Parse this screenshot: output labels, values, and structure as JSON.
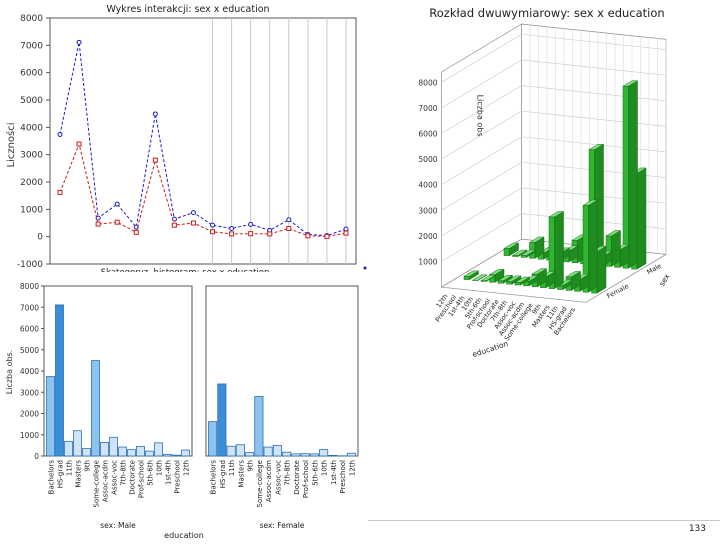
{
  "chart_data": [
    {
      "type": "line",
      "title": "Wykres interakcji: sex x education",
      "xlabel": "Skategoryz. histogram: sex x education",
      "ylabel": "Liczności",
      "ylim": [
        -1000,
        8000
      ],
      "yticks": [
        "-1000",
        "0",
        "1000",
        "2000",
        "3000",
        "4000",
        "5000",
        "6000",
        "7000",
        "8000"
      ],
      "yticks_values": [
        -1000,
        0,
        1000,
        2000,
        3000,
        4000,
        5000,
        6000,
        7000,
        8000
      ],
      "categories": [
        "Bachelors",
        "HS-grad",
        "11th",
        "Masters",
        "9th",
        "Some-college",
        "Assoc-acdm",
        "Assoc-voc",
        "7th-8th",
        "Doctorate",
        "Prof-school",
        "5th-6th",
        "10th",
        "1st-4th",
        "Preschool",
        "12th"
      ],
      "series": [
        {
          "name": "Male",
          "color": "#1c1ccc",
          "values": [
            3740,
            7110,
            680,
            1190,
            350,
            4490,
            640,
            880,
            420,
            300,
            450,
            230,
            620,
            80,
            40,
            280
          ]
        },
        {
          "name": "Female",
          "color": "#cc1c1c",
          "values": [
            1620,
            3390,
            460,
            530,
            160,
            2800,
            420,
            500,
            180,
            100,
            110,
            100,
            300,
            30,
            10,
            130
          ]
        }
      ]
    },
    {
      "type": "bar3d",
      "title": "Rozkład dwuwymiarowy: sex x education",
      "zlabel": "Liczba obs",
      "xlabel": "education",
      "ylabel": "sex",
      "zticks": [
        "1000",
        "2000",
        "3000",
        "4000",
        "5000",
        "6000",
        "7000",
        "8000"
      ],
      "zticks_values": [
        1000,
        2000,
        3000,
        4000,
        5000,
        6000,
        7000,
        8000
      ],
      "categories": [
        "12th",
        "Preschool",
        "1st-4th",
        "10th",
        "5th-6th",
        "Prof-school",
        "Doctorate",
        "7th-8th",
        "Assoc-voc",
        "Assoc-acdm",
        "Some-college",
        "9th",
        "Masters",
        "11th",
        "HS-grad",
        "Bachelors"
      ],
      "sex": [
        "Male",
        "Female"
      ],
      "series": [
        {
          "name": "Male",
          "values": [
            280,
            40,
            80,
            620,
            230,
            450,
            300,
            420,
            880,
            640,
            4490,
            350,
            1190,
            680,
            7110,
            3740
          ]
        },
        {
          "name": "Female",
          "values": [
            130,
            10,
            30,
            300,
            100,
            110,
            100,
            180,
            500,
            420,
            2800,
            160,
            530,
            460,
            3390,
            1620
          ]
        }
      ]
    },
    {
      "type": "bar",
      "title": "sex: Male",
      "ylabel": "Liczba obs.",
      "xlabel": "education",
      "ylim": [
        0,
        8000
      ],
      "yticks": [
        "0",
        "1000",
        "2000",
        "3000",
        "4000",
        "5000",
        "6000",
        "7000",
        "8000"
      ],
      "yticks_values": [
        0,
        1000,
        2000,
        3000,
        4000,
        5000,
        6000,
        7000,
        8000
      ],
      "categories": [
        "Bachelors",
        "HS-grad",
        "11th",
        "Masters",
        "9th",
        "Some-college",
        "Assoc-acdm",
        "Assoc-voc",
        "7th-8th",
        "Doctorate",
        "Prof-school",
        "5th-6th",
        "10th",
        "1st-4th",
        "Preschool",
        "12th"
      ],
      "values": [
        3740,
        7110,
        680,
        1190,
        350,
        4490,
        640,
        880,
        420,
        300,
        450,
        230,
        620,
        80,
        40,
        280
      ]
    },
    {
      "type": "bar",
      "title": "sex: Female",
      "ylim": [
        0,
        8000
      ],
      "categories": [
        "Bachelors",
        "HS-grad",
        "11th",
        "Masters",
        "9th",
        "Some-college",
        "Assoc-acdm",
        "Assoc-voc",
        "7th-8th",
        "Doctorate",
        "Prof-school",
        "5th-6th",
        "10th",
        "1st-4th",
        "Preschool",
        "12th"
      ],
      "values": [
        1620,
        3390,
        460,
        530,
        160,
        2800,
        420,
        500,
        180,
        100,
        110,
        100,
        300,
        30,
        10,
        130
      ]
    }
  ],
  "page_number": "133"
}
